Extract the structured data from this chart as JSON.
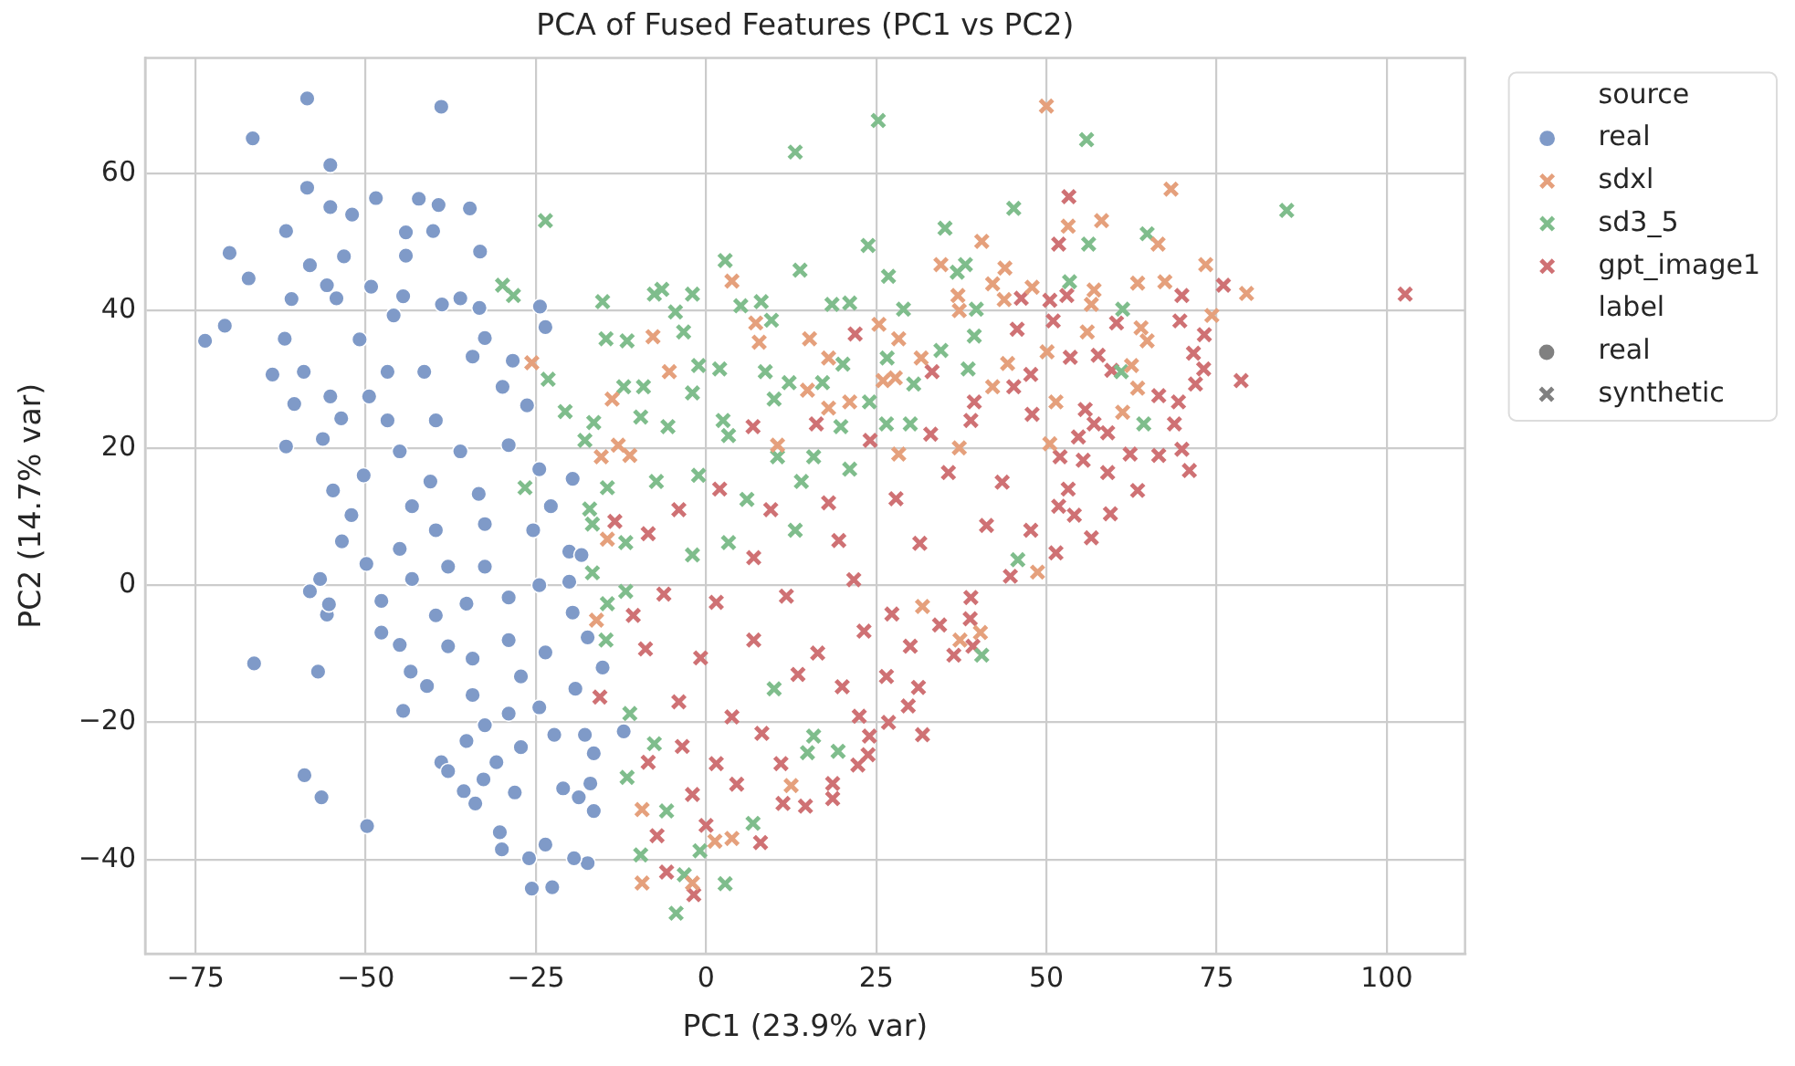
{
  "chart_data": {
    "type": "scatter",
    "title": "PCA of Fused Features (PC1 vs PC2)",
    "xlabel": "PC1 (23.9% var)",
    "ylabel": "PC2 (14.7% var)",
    "legend_title": "source",
    "annotations": [
      "label",
      "real",
      "synthetic"
    ],
    "xlim": [
      -82.4,
      111.5
    ],
    "ylim": [
      -53.7,
      76.8
    ],
    "xticks": [
      {
        "value": -75,
        "label": "−75"
      },
      {
        "value": -50,
        "label": "−50"
      },
      {
        "value": -25,
        "label": "−25"
      },
      0,
      25,
      50,
      75,
      100
    ],
    "yticks": [
      {
        "value": -40,
        "label": "−40"
      },
      {
        "value": -20,
        "label": "−20"
      },
      0,
      20,
      40,
      60
    ],
    "grid": true,
    "legend": "right",
    "series": [
      {
        "name": "real",
        "color": "#7f9ac8",
        "marker": "circle",
        "x": [
          -58.6,
          -38.9,
          -66.6,
          -55.2,
          -58.6,
          -55.2,
          -52.0,
          -48.5,
          -42.2,
          -39.3,
          -34.7,
          -61.7,
          -70.0,
          -58.2,
          -67.2,
          -53.2,
          -44.1,
          -40.1,
          -33.2,
          -60.9,
          -55.7,
          -70.7,
          -73.6,
          -61.9,
          -63.7,
          -60.5,
          -61.7,
          -56.3,
          -53.6,
          -50.9,
          -45.9,
          -44.5,
          -38.8,
          -33.3,
          -24.4,
          -23.6,
          -28.4,
          -32.5,
          -36.1,
          -44.1,
          -49.2,
          -54.3,
          -49.5,
          -55.2,
          -59.1,
          -46.8,
          -41.4,
          -34.3,
          -29.9,
          -26.3,
          -39.7,
          -46.8,
          -45.0,
          -36.1,
          -29.0,
          -24.5,
          -19.6,
          -50.3,
          -54.8,
          -40.5,
          -33.4,
          -52.1,
          -53.5,
          -49.9,
          -56.7,
          -58.2,
          -55.7,
          -55.4,
          -66.4,
          -57.0,
          -59.0,
          -56.5,
          -49.8,
          -44.5,
          -47.7,
          -47.7,
          -45.0,
          -41.0,
          -43.4,
          -38.9,
          -35.6,
          -33.9,
          -30.0,
          -25.6,
          -22.6,
          -17.4,
          -19.4,
          -23.6,
          -26.0,
          -16.5,
          -18.7,
          -21.0,
          -16.5,
          -17.8,
          -22.3,
          -27.2,
          -30.8,
          -32.7,
          -35.2,
          -37.9,
          -28.1,
          -30.3,
          -17.0,
          -15.2,
          -17.4,
          -19.6,
          -20.1,
          -20.1,
          -18.3,
          -12.1,
          -19.2,
          -24.5,
          -29.0,
          -32.5,
          -34.3,
          -27.2,
          -23.6,
          -29.0,
          -34.3,
          -37.9,
          -39.7,
          -35.2,
          -29.0,
          -24.5,
          -32.5,
          -37.9,
          -43.2,
          -45.0,
          -39.7,
          -32.5,
          -25.4,
          -22.8,
          -43.2
        ],
        "values": [
          70.9,
          69.7,
          65.1,
          61.2,
          57.9,
          55.1,
          54.0,
          56.4,
          56.3,
          55.4,
          54.9,
          51.6,
          48.4,
          46.6,
          44.7,
          47.9,
          51.4,
          51.6,
          48.6,
          41.7,
          43.7,
          37.8,
          35.6,
          35.9,
          30.7,
          26.4,
          20.2,
          21.3,
          24.3,
          35.8,
          39.3,
          42.1,
          40.9,
          40.4,
          40.6,
          37.6,
          32.7,
          36.0,
          41.8,
          48.0,
          43.5,
          41.8,
          27.5,
          27.5,
          31.1,
          31.1,
          31.1,
          33.3,
          28.9,
          26.2,
          24.0,
          24.0,
          19.5,
          19.5,
          20.4,
          16.9,
          15.5,
          16.0,
          13.8,
          15.1,
          13.3,
          10.2,
          6.4,
          3.1,
          0.9,
          -0.9,
          -4.3,
          -2.8,
          -11.4,
          -12.6,
          -27.7,
          -30.9,
          -35.1,
          -18.3,
          -6.9,
          -2.3,
          -8.7,
          -14.7,
          -12.6,
          -25.8,
          -30.0,
          -31.8,
          -38.5,
          -44.2,
          -44.0,
          -40.5,
          -39.8,
          -37.8,
          -39.8,
          -32.9,
          -30.9,
          -29.6,
          -24.5,
          -21.8,
          -21.8,
          -23.6,
          -25.8,
          -28.3,
          -22.7,
          -27.1,
          -30.2,
          -36.0,
          -28.9,
          -12.0,
          -7.6,
          -4.0,
          0.5,
          4.9,
          4.4,
          -21.3,
          -15.1,
          -17.8,
          -18.7,
          -20.4,
          -16.0,
          -13.3,
          -9.8,
          -8.0,
          -10.7,
          -8.9,
          -4.4,
          -2.7,
          -1.8,
          0.0,
          2.7,
          2.7,
          0.9,
          5.3,
          8.0,
          8.9,
          8.0,
          11.5,
          11.5
        ]
      },
      {
        "name": "sdxl",
        "color": "#e5a07c",
        "marker": "cross",
        "x": [
          50.0,
          68.3,
          53.2,
          58.1,
          40.5,
          66.4,
          34.5,
          43.9,
          73.4,
          42.1,
          47.9,
          63.4,
          67.4,
          79.4,
          57.0,
          37.0,
          43.8,
          56.6,
          74.3,
          25.4,
          63.9,
          56.0,
          15.2,
          28.3,
          7.8,
          50.1,
          64.8,
          18.0,
          31.6,
          44.3,
          62.5,
          14.9,
          27.8,
          42.1,
          63.4,
          18.0,
          51.4,
          61.2,
          50.5,
          37.2,
          10.5,
          7.3,
          -25.6,
          -7.8,
          3.8,
          -5.4,
          -11.2,
          -12.9,
          -13.8,
          21.1,
          26.0,
          37.2,
          -15.4,
          -14.5,
          28.3,
          -16.1,
          -9.4,
          -9.4,
          -2.0,
          1.3,
          48.7,
          40.3,
          37.3,
          31.8,
          12.5,
          3.8
        ],
        "values": [
          69.8,
          57.7,
          52.3,
          53.1,
          50.1,
          49.7,
          46.7,
          46.2,
          46.7,
          43.9,
          43.4,
          44.0,
          44.2,
          42.5,
          43.0,
          42.2,
          41.6,
          40.9,
          39.3,
          38.0,
          37.5,
          36.9,
          35.9,
          35.9,
          35.4,
          34.0,
          35.6,
          33.1,
          33.1,
          32.3,
          32.0,
          28.4,
          30.2,
          28.9,
          28.7,
          25.8,
          26.7,
          25.2,
          20.6,
          20.0,
          20.4,
          38.2,
          32.4,
          36.2,
          44.3,
          31.1,
          18.9,
          20.4,
          27.1,
          26.7,
          29.8,
          40.0,
          18.7,
          6.7,
          19.1,
          -5.1,
          -32.7,
          -43.4,
          -43.4,
          -37.3,
          1.9,
          -6.9,
          -8.0,
          -3.1,
          -29.2,
          -36.9
        ]
      },
      {
        "name": "sd3_5",
        "color": "#7fbd8c",
        "marker": "cross",
        "x": [
          25.3,
          13.1,
          55.9,
          85.3,
          45.2,
          35.1,
          23.8,
          13.8,
          26.8,
          38.1,
          36.9,
          56.2,
          64.8,
          53.4,
          61.2,
          29.0,
          39.7,
          18.5,
          21.1,
          8.1,
          5.1,
          9.6,
          39.4,
          26.6,
          20.1,
          34.5,
          38.5,
          12.2,
          8.7,
          17.1,
          61.0,
          64.3,
          30.5,
          30.0,
          10.0,
          24.0,
          -23.6,
          -29.9,
          -28.3,
          -15.2,
          -14.7,
          -11.6,
          -23.2,
          -20.7,
          -17.8,
          -16.5,
          -12.1,
          -9.2,
          -7.6,
          -6.5,
          -2.0,
          2.8,
          -3.3,
          -4.5,
          -1.1,
          2.0,
          -26.6,
          -9.6,
          -2.0,
          2.5,
          -5.6,
          3.3,
          19.8,
          26.5,
          -17.1,
          -16.7,
          -11.8,
          -14.5,
          -7.3,
          -1.1,
          6.0,
          14.0,
          15.8,
          10.5,
          21.1,
          -11.8,
          -14.5,
          -16.7,
          -2.0,
          3.3,
          13.1,
          -14.7,
          -11.2,
          -11.6,
          -9.6,
          -4.4,
          2.8,
          -3.2,
          -0.9,
          -5.8,
          -7.6,
          45.8,
          40.5,
          15.8,
          19.4,
          10.0,
          14.9,
          6.9
        ],
        "values": [
          67.7,
          63.1,
          64.9,
          54.6,
          54.9,
          52.0,
          49.5,
          45.9,
          45.0,
          46.7,
          45.6,
          49.7,
          51.2,
          44.2,
          40.2,
          40.2,
          40.2,
          40.9,
          41.1,
          41.3,
          40.7,
          38.6,
          36.3,
          33.1,
          32.2,
          34.2,
          31.5,
          29.5,
          31.1,
          29.5,
          31.1,
          23.5,
          29.3,
          23.5,
          27.1,
          26.7,
          53.1,
          43.7,
          42.2,
          41.3,
          35.9,
          35.6,
          30.0,
          25.3,
          21.1,
          23.7,
          28.9,
          28.9,
          42.4,
          43.1,
          42.4,
          47.3,
          36.9,
          39.8,
          32.0,
          31.5,
          14.2,
          24.5,
          28.0,
          24.0,
          23.1,
          21.8,
          23.1,
          23.5,
          11.1,
          8.9,
          6.2,
          14.2,
          15.1,
          16.0,
          12.5,
          15.1,
          18.7,
          18.7,
          16.9,
          -0.9,
          -2.7,
          1.8,
          4.4,
          6.2,
          8.0,
          -8.0,
          -18.7,
          -28.0,
          -39.3,
          -47.8,
          -43.5,
          -42.2,
          -38.7,
          -32.9,
          -23.1,
          3.7,
          -10.2,
          -22.0,
          -24.2,
          -15.1,
          -24.4,
          -34.7
        ]
      },
      {
        "name": "gpt_image1",
        "color": "#cf7174",
        "marker": "cross",
        "x": [
          102.7,
          53.3,
          51.8,
          76.0,
          69.9,
          53.0,
          50.5,
          46.3,
          69.6,
          51.0,
          45.7,
          60.3,
          73.2,
          71.6,
          53.5,
          57.6,
          73.1,
          78.6,
          71.9,
          59.6,
          47.7,
          45.2,
          66.5,
          69.4,
          55.7,
          57.0,
          68.8,
          54.7,
          59.0,
          69.9,
          71.0,
          66.5,
          62.3,
          63.4,
          59.0,
          55.4,
          52.0,
          53.2,
          21.9,
          33.2,
          39.4,
          38.9,
          24.1,
          16.2,
          6.9,
          47.9,
          59.4,
          56.6,
          54.1,
          51.8,
          51.4,
          47.7,
          44.7,
          38.9,
          38.8,
          34.3,
          36.4,
          39.2,
          31.2,
          29.7,
          31.8,
          26.8,
          24.0,
          23.8,
          22.3,
          18.6,
          18.6,
          14.6,
          11.3,
          8.0,
          22.5,
          26.5,
          30.0,
          -15.6,
          -10.7,
          -5.8,
          -1.8,
          -8.5,
          -13.4,
          -7.2,
          -4.0,
          2.0,
          9.5,
          18.0,
          27.9,
          35.6,
          -8.5,
          7.0,
          19.5,
          31.4,
          41.2,
          -6.2,
          1.5,
          11.8,
          21.7,
          27.3,
          -8.9,
          -0.8,
          7.0,
          16.4,
          23.2,
          -4.0,
          3.8,
          13.5,
          20.0,
          -3.5,
          1.5,
          8.2,
          -2.0,
          4.5,
          11.0,
          0.0,
          43.5,
          33.0
        ],
        "values": [
          42.4,
          56.6,
          49.7,
          43.7,
          42.2,
          42.2,
          41.5,
          41.8,
          38.5,
          38.5,
          37.3,
          38.2,
          36.5,
          33.8,
          33.2,
          33.5,
          31.5,
          29.8,
          29.3,
          31.3,
          30.7,
          28.9,
          27.6,
          26.7,
          25.6,
          23.5,
          23.5,
          21.6,
          22.2,
          19.8,
          16.7,
          18.9,
          19.1,
          13.8,
          16.4,
          18.2,
          18.7,
          14.0,
          36.6,
          31.1,
          26.7,
          24.0,
          21.1,
          23.5,
          23.1,
          24.9,
          10.4,
          6.9,
          10.2,
          11.5,
          4.7,
          8.0,
          1.3,
          -1.8,
          -4.9,
          -5.8,
          -10.2,
          -8.9,
          -14.9,
          -17.6,
          -21.8,
          -20.0,
          -22.0,
          -24.7,
          -26.2,
          -28.9,
          -31.1,
          -32.2,
          -31.8,
          -37.5,
          -19.1,
          -13.3,
          -8.9,
          -16.3,
          -4.4,
          -41.8,
          -45.1,
          -25.8,
          9.3,
          -36.5,
          11.0,
          14.0,
          11.0,
          12.0,
          12.6,
          16.4,
          7.5,
          4.0,
          6.5,
          6.1,
          8.7,
          -1.3,
          -2.5,
          -1.6,
          0.8,
          -4.2,
          -9.3,
          -10.6,
          -8.0,
          -9.9,
          -6.7,
          -17.0,
          -19.2,
          -13.0,
          -14.8,
          -23.5,
          -26.0,
          -21.6,
          -30.5,
          -29.0,
          -26.0,
          -35.0,
          15.0,
          22.0
        ]
      }
    ]
  }
}
